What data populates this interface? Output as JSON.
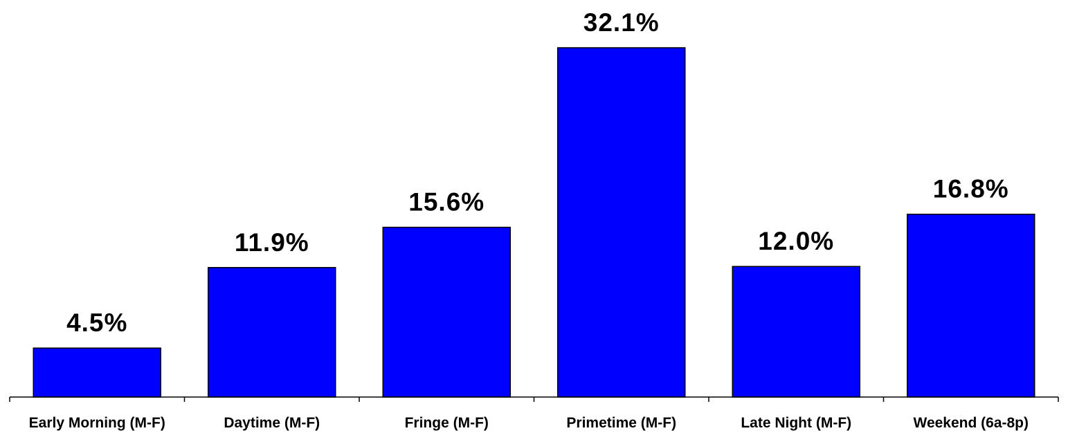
{
  "chart_data": {
    "type": "bar",
    "categories": [
      "Early Morning (M-F)",
      "Daytime (M-F)",
      "Fringe (M-F)",
      "Primetime (M-F)",
      "Late Night (M-F)",
      "Weekend (6a-8p)"
    ],
    "values": [
      4.5,
      11.9,
      15.6,
      32.1,
      12.0,
      16.8
    ],
    "data_labels": [
      "4.5%",
      "11.9%",
      "15.6%",
      "32.1%",
      "12.0%",
      "16.8%"
    ],
    "title": "",
    "xlabel": "",
    "ylabel": "",
    "ylim": [
      0,
      32.1
    ],
    "grid": false,
    "legend": "none",
    "colors": {
      "bar_fill": "#0000ff",
      "bar_stroke": "#000000",
      "text": "#000000",
      "background": "#ffffff"
    }
  }
}
